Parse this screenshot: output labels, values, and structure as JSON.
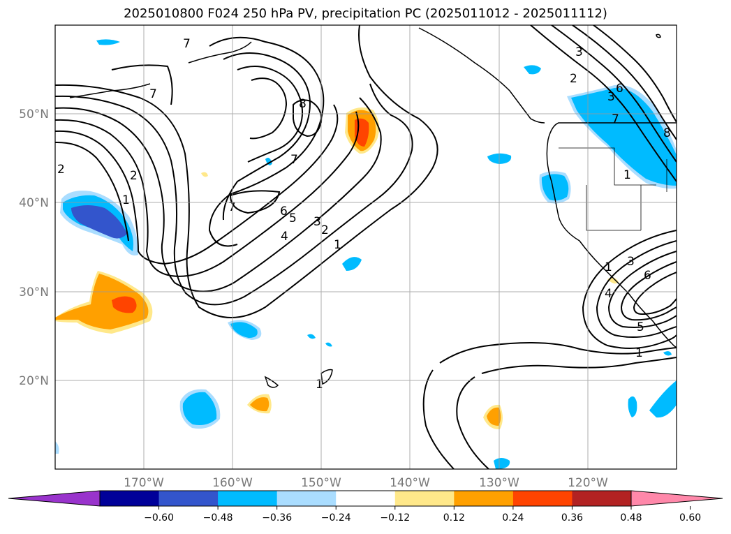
{
  "title": "2025010800 F024 250 hPa PV, precipitation PC (2025011012 - 2025011112)",
  "map": {
    "lon_range": [
      -180,
      -110
    ],
    "lat_range": [
      10,
      60
    ],
    "lat_ticks": [
      {
        "value": 50,
        "label": "50°N"
      },
      {
        "value": 40,
        "label": "40°N"
      },
      {
        "value": 30,
        "label": "30°N"
      },
      {
        "value": 20,
        "label": "20°N"
      }
    ],
    "lon_ticks": [
      {
        "value": -170,
        "label": "170°W"
      },
      {
        "value": -160,
        "label": "160°W"
      },
      {
        "value": -150,
        "label": "150°W"
      },
      {
        "value": -140,
        "label": "140°W"
      },
      {
        "value": -130,
        "label": "130°W"
      },
      {
        "value": -120,
        "label": "120°W"
      }
    ],
    "gridlines": true,
    "contour_labels": [
      "7",
      "7",
      "8",
      "7",
      "7",
      "6",
      "5",
      "4",
      "3",
      "2",
      "1",
      "2",
      "2",
      "1",
      "3",
      "2",
      "3",
      "6",
      "8",
      "7",
      "1",
      "1",
      "4",
      "3",
      "6",
      "5",
      "1",
      "1"
    ]
  },
  "colorbar": {
    "labels": [
      "−0.60",
      "−0.48",
      "−0.36",
      "−0.24",
      "−0.12",
      "0.12",
      "0.24",
      "0.36",
      "0.48",
      "0.60"
    ],
    "colors": [
      "#9933cc",
      "#000099",
      "#3355cc",
      "#00bbff",
      "#aaddff",
      "#ffffff",
      "#ffe88a",
      "#ffa000",
      "#ff4400",
      "#b22222",
      "#ff88aa"
    ]
  }
}
